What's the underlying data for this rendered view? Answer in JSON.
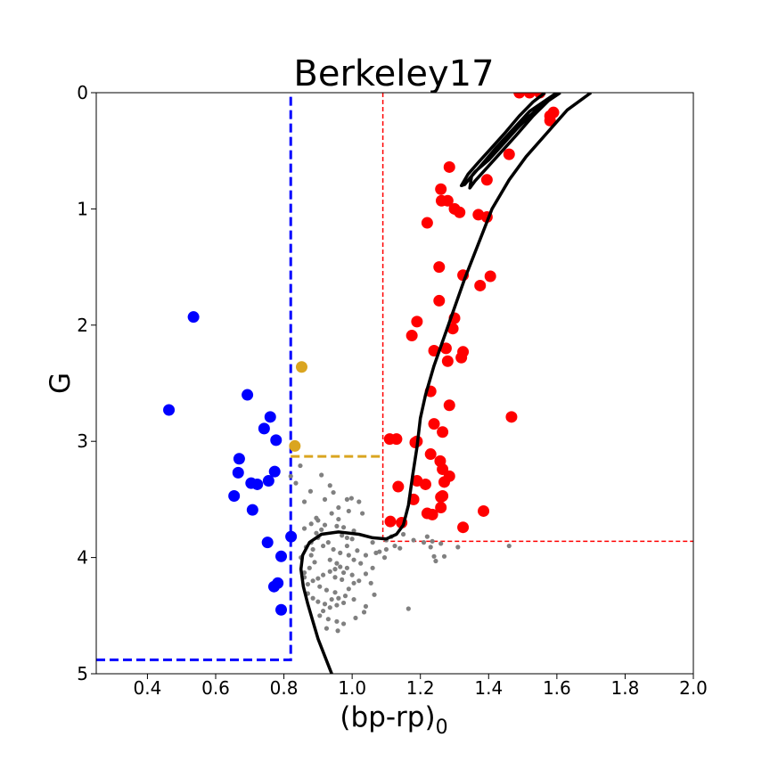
{
  "chart_data": {
    "type": "scatter",
    "title": "Berkeley17",
    "xlabel": "(bp-rp)",
    "xlabel_subscript": "0",
    "ylabel": "G",
    "xlim": [
      0.25,
      2.0
    ],
    "ylim": [
      5,
      0
    ],
    "y_inverted": true,
    "grid": false,
    "legend": "none",
    "x_ticks": [
      "0.4",
      "0.6",
      "0.8",
      "1.0",
      "1.2",
      "1.4",
      "1.6",
      "1.8",
      "2.0"
    ],
    "x_tick_values": [
      0.4,
      0.6,
      0.8,
      1.0,
      1.2,
      1.4,
      1.6,
      1.8,
      2.0
    ],
    "y_ticks": [
      "0",
      "1",
      "2",
      "3",
      "4",
      "5"
    ],
    "y_tick_values": [
      0,
      1,
      2,
      3,
      4,
      5
    ],
    "colors": {
      "blue_stragglers": "#0000ff",
      "red_giants": "#ff0000",
      "yellow": "#daa520",
      "field": "#808080",
      "isochrone": "#000000",
      "blue_box": "#0000ff",
      "red_box": "#ff0000",
      "yellow_line": "#daa520"
    },
    "series": [
      {
        "color": "#0000ff",
        "marker": "large",
        "points": [
          [
            0.535,
            1.93
          ],
          [
            0.463,
            2.73
          ],
          [
            0.693,
            2.6
          ],
          [
            0.76,
            2.79
          ],
          [
            0.742,
            2.89
          ],
          [
            0.777,
            2.99
          ],
          [
            0.669,
            3.15
          ],
          [
            0.666,
            3.27
          ],
          [
            0.704,
            3.36
          ],
          [
            0.722,
            3.37
          ],
          [
            0.755,
            3.34
          ],
          [
            0.773,
            3.26
          ],
          [
            0.654,
            3.47
          ],
          [
            0.708,
            3.59
          ],
          [
            0.752,
            3.87
          ],
          [
            0.821,
            3.82
          ],
          [
            0.792,
            3.99
          ],
          [
            0.782,
            4.22
          ],
          [
            0.771,
            4.25
          ],
          [
            0.792,
            4.45
          ]
        ]
      },
      {
        "color": "#daa520",
        "marker": "large",
        "points": [
          [
            0.852,
            2.36
          ],
          [
            0.832,
            3.04
          ]
        ]
      },
      {
        "color": "#ff0000",
        "marker": "large",
        "points": [
          [
            1.49,
            0.0
          ],
          [
            1.52,
            0.0
          ],
          [
            1.55,
            0.0
          ],
          [
            1.58,
            0.2
          ],
          [
            1.58,
            0.24
          ],
          [
            1.59,
            0.17
          ],
          [
            1.46,
            0.53
          ],
          [
            1.285,
            0.64
          ],
          [
            1.26,
            0.83
          ],
          [
            1.262,
            0.93
          ],
          [
            1.28,
            0.93
          ],
          [
            1.3,
            1.0
          ],
          [
            1.315,
            1.03
          ],
          [
            1.37,
            1.05
          ],
          [
            1.395,
            1.07
          ],
          [
            1.395,
            0.75
          ],
          [
            1.22,
            1.12
          ],
          [
            1.255,
            1.5
          ],
          [
            1.325,
            1.57
          ],
          [
            1.405,
            1.58
          ],
          [
            1.375,
            1.66
          ],
          [
            1.255,
            1.79
          ],
          [
            1.3,
            1.94
          ],
          [
            1.19,
            1.97
          ],
          [
            1.295,
            2.03
          ],
          [
            1.175,
            2.09
          ],
          [
            1.24,
            2.22
          ],
          [
            1.275,
            2.2
          ],
          [
            1.325,
            2.23
          ],
          [
            1.32,
            2.28
          ],
          [
            1.28,
            2.31
          ],
          [
            1.23,
            2.57
          ],
          [
            1.285,
            2.69
          ],
          [
            1.24,
            2.85
          ],
          [
            1.265,
            2.92
          ],
          [
            1.467,
            2.79
          ],
          [
            1.11,
            2.98
          ],
          [
            1.13,
            2.98
          ],
          [
            1.185,
            3.01
          ],
          [
            1.19,
            3.0
          ],
          [
            1.23,
            3.11
          ],
          [
            1.258,
            3.17
          ],
          [
            1.265,
            3.24
          ],
          [
            1.19,
            3.34
          ],
          [
            1.215,
            3.37
          ],
          [
            1.27,
            3.35
          ],
          [
            1.135,
            3.39
          ],
          [
            1.285,
            3.3
          ],
          [
            1.265,
            3.47
          ],
          [
            1.26,
            3.48
          ],
          [
            1.18,
            3.5
          ],
          [
            1.26,
            3.57
          ],
          [
            1.22,
            3.62
          ],
          [
            1.235,
            3.63
          ],
          [
            1.385,
            3.6
          ],
          [
            1.112,
            3.69
          ],
          [
            1.145,
            3.7
          ],
          [
            1.325,
            3.74
          ]
        ]
      },
      {
        "color": "#808080",
        "marker": "small",
        "points": [
          [
            0.848,
            3.21
          ],
          [
            0.878,
            3.43
          ],
          [
            0.91,
            3.29
          ],
          [
            0.935,
            3.38
          ],
          [
            0.945,
            3.44
          ],
          [
            0.92,
            3.5
          ],
          [
            0.985,
            3.5
          ],
          [
            0.998,
            3.49
          ],
          [
            1.02,
            3.52
          ],
          [
            0.96,
            3.57
          ],
          [
            0.99,
            3.6
          ],
          [
            1.03,
            3.62
          ],
          [
            0.895,
            3.66
          ],
          [
            0.9,
            3.68
          ],
          [
            0.92,
            3.72
          ],
          [
            0.955,
            3.73
          ],
          [
            0.975,
            3.74
          ],
          [
            1.005,
            3.77
          ],
          [
            1.0,
            3.84
          ],
          [
            0.97,
            3.81
          ],
          [
            0.985,
            3.83
          ],
          [
            0.91,
            3.76
          ],
          [
            0.895,
            3.79
          ],
          [
            0.93,
            3.87
          ],
          [
            0.885,
            3.93
          ],
          [
            0.915,
            3.9
          ],
          [
            0.945,
            3.93
          ],
          [
            0.965,
            3.96
          ],
          [
            0.99,
            3.98
          ],
          [
            1.005,
            4.02
          ],
          [
            1.025,
            4.05
          ],
          [
            0.985,
            4.09
          ],
          [
            0.965,
            4.08
          ],
          [
            0.95,
            4.1
          ],
          [
            0.935,
            4.12
          ],
          [
            0.915,
            4.15
          ],
          [
            0.9,
            4.18
          ],
          [
            0.885,
            4.2
          ],
          [
            0.87,
            4.23
          ],
          [
            0.905,
            4.25
          ],
          [
            0.925,
            4.28
          ],
          [
            0.95,
            4.3
          ],
          [
            0.98,
            4.33
          ],
          [
            1.005,
            4.36
          ],
          [
            0.975,
            4.39
          ],
          [
            0.955,
            4.41
          ],
          [
            0.935,
            4.43
          ],
          [
            0.915,
            4.46
          ],
          [
            0.905,
            4.5
          ],
          [
            0.93,
            4.53
          ],
          [
            0.955,
            4.55
          ],
          [
            0.975,
            4.57
          ],
          [
            0.925,
            4.61
          ],
          [
            0.958,
            4.63
          ],
          [
            1.01,
            4.52
          ],
          [
            1.035,
            4.47
          ],
          [
            1.04,
            4.42
          ],
          [
            1.065,
            4.32
          ],
          [
            1.06,
            3.87
          ],
          [
            1.1,
            3.85
          ],
          [
            1.08,
            3.95
          ],
          [
            1.095,
            4.0
          ],
          [
            1.125,
            3.9
          ],
          [
            1.14,
            3.92
          ],
          [
            1.18,
            3.85
          ],
          [
            1.22,
            3.82
          ],
          [
            1.235,
            3.86
          ],
          [
            1.26,
            3.88
          ],
          [
            1.24,
            3.99
          ],
          [
            1.245,
            4.03
          ],
          [
            1.27,
            3.99
          ],
          [
            1.31,
            3.91
          ],
          [
            1.46,
            3.9
          ],
          [
            1.165,
            4.44
          ],
          [
            0.88,
            3.98
          ],
          [
            0.89,
            4.04
          ],
          [
            0.875,
            4.09
          ],
          [
            0.86,
            4.13
          ],
          [
            0.86,
            4.17
          ],
          [
            0.87,
            4.31
          ],
          [
            0.885,
            4.35
          ],
          [
            0.9,
            4.38
          ],
          [
            0.92,
            4.4
          ],
          [
            0.94,
            4.36
          ],
          [
            0.96,
            4.35
          ],
          [
            0.99,
            4.27
          ],
          [
            1.005,
            4.22
          ],
          [
            0.97,
            4.19
          ],
          [
            0.95,
            4.17
          ],
          [
            0.935,
            4.02
          ],
          [
            0.955,
            4.05
          ],
          [
            0.975,
            4.13
          ],
          [
            1.0,
            4.15
          ],
          [
            1.02,
            4.2
          ],
          [
            1.04,
            4.14
          ],
          [
            1.06,
            4.09
          ],
          [
            1.055,
            4.22
          ],
          [
            0.9,
            3.83
          ],
          [
            0.88,
            3.87
          ],
          [
            0.985,
            3.9
          ],
          [
            1.015,
            3.94
          ],
          [
            1.04,
            3.98
          ],
          [
            1.07,
            3.96
          ],
          [
            1.1,
            3.93
          ],
          [
            0.96,
            3.67
          ],
          [
            0.94,
            3.62
          ],
          [
            0.88,
            3.71
          ],
          [
            0.86,
            3.75
          ],
          [
            0.86,
            3.52
          ],
          [
            0.82,
            3.3
          ],
          [
            0.835,
            3.36
          ],
          [
            0.85,
            4.0
          ],
          [
            0.865,
            3.91
          ],
          [
            1.115,
            3.82
          ],
          [
            1.15,
            3.8
          ],
          [
            1.21,
            3.87
          ],
          [
            1.23,
            3.91
          ]
        ]
      }
    ],
    "isochrone": [
      [
        0.94,
        5.0
      ],
      [
        0.92,
        4.85
      ],
      [
        0.9,
        4.7
      ],
      [
        0.885,
        4.55
      ],
      [
        0.87,
        4.4
      ],
      [
        0.857,
        4.25
      ],
      [
        0.85,
        4.1
      ],
      [
        0.855,
        3.98
      ],
      [
        0.875,
        3.87
      ],
      [
        0.91,
        3.8
      ],
      [
        0.96,
        3.78
      ],
      [
        1.02,
        3.8
      ],
      [
        1.06,
        3.83
      ],
      [
        1.1,
        3.84
      ],
      [
        1.13,
        3.8
      ],
      [
        1.15,
        3.72
      ],
      [
        1.165,
        3.55
      ],
      [
        1.177,
        3.3
      ],
      [
        1.19,
        3.05
      ],
      [
        1.2,
        2.8
      ],
      [
        1.215,
        2.6
      ],
      [
        1.24,
        2.35
      ],
      [
        1.27,
        2.1
      ],
      [
        1.3,
        1.85
      ],
      [
        1.33,
        1.6
      ],
      [
        1.37,
        1.3
      ],
      [
        1.41,
        1.0
      ],
      [
        1.46,
        0.75
      ],
      [
        1.51,
        0.55
      ],
      [
        1.57,
        0.35
      ],
      [
        1.63,
        0.15
      ],
      [
        1.7,
        0.0
      ]
    ],
    "isochrone_loop": [
      [
        1.565,
        0.0
      ],
      [
        1.53,
        0.08
      ],
      [
        1.49,
        0.2
      ],
      [
        1.45,
        0.34
      ],
      [
        1.41,
        0.47
      ],
      [
        1.37,
        0.6
      ],
      [
        1.34,
        0.7
      ],
      [
        1.32,
        0.8
      ],
      [
        1.33,
        0.79
      ],
      [
        1.36,
        0.68
      ],
      [
        1.4,
        0.58
      ],
      [
        1.44,
        0.45
      ],
      [
        1.48,
        0.32
      ],
      [
        1.52,
        0.2
      ],
      [
        1.56,
        0.1
      ],
      [
        1.6,
        0.0
      ],
      [
        1.57,
        0.06
      ],
      [
        1.52,
        0.16
      ],
      [
        1.47,
        0.32
      ],
      [
        1.42,
        0.48
      ],
      [
        1.38,
        0.62
      ],
      [
        1.35,
        0.72
      ],
      [
        1.345,
        0.82
      ],
      [
        1.36,
        0.76
      ],
      [
        1.4,
        0.63
      ],
      [
        1.44,
        0.5
      ],
      [
        1.48,
        0.37
      ],
      [
        1.53,
        0.2
      ],
      [
        1.575,
        0.07
      ],
      [
        1.61,
        0.0
      ]
    ],
    "guides": {
      "blue_box": {
        "color": "#0000ff",
        "x_right": 0.82,
        "y_bottom": 4.88
      },
      "yellow_line": {
        "color": "#daa520",
        "x_from": 0.82,
        "x_to": 1.09,
        "y": 3.13
      },
      "red_box": {
        "color": "#ff0000",
        "x_left": 1.09,
        "y_bottom": 3.86
      }
    }
  }
}
